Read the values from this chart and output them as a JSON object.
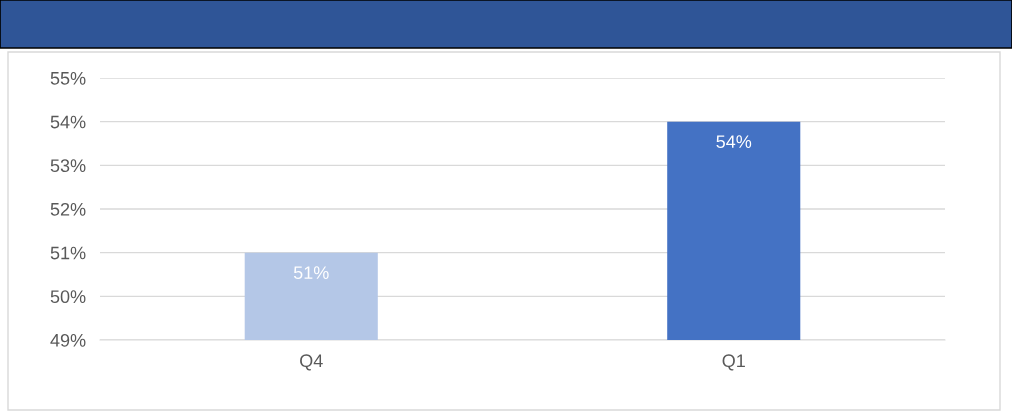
{
  "chart_data": {
    "type": "bar",
    "categories": [
      "Q4",
      "Q1"
    ],
    "values": [
      51,
      54
    ],
    "colors": [
      "#b4c7e7",
      "#4472c4"
    ],
    "value_labels": [
      "51%",
      "54%"
    ],
    "ylim": [
      49,
      55
    ],
    "yticks": [
      {
        "value": 49,
        "label": "49%"
      },
      {
        "value": 50,
        "label": "50%"
      },
      {
        "value": 51,
        "label": "51%"
      },
      {
        "value": 52,
        "label": "52%"
      },
      {
        "value": 53,
        "label": "53%"
      },
      {
        "value": 54,
        "label": "54%"
      },
      {
        "value": 55,
        "label": "55%"
      }
    ],
    "grid": "y",
    "legend": false
  }
}
